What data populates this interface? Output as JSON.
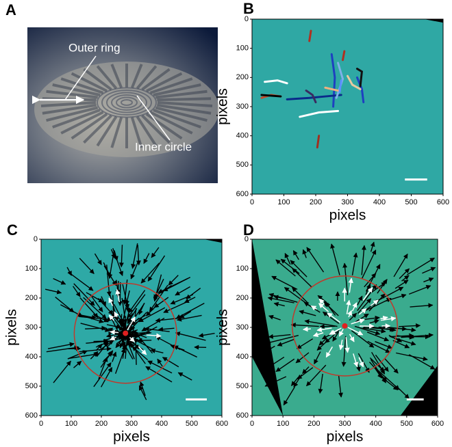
{
  "panels": [
    {
      "label": "A",
      "annotations": [
        "Outer ring",
        "Inner circle"
      ]
    },
    {
      "label": "B",
      "x_label": "pixels",
      "y_label": "pixels",
      "xticks": [
        0,
        100,
        200,
        300,
        400,
        500,
        600
      ],
      "yticks": [
        0,
        100,
        200,
        300,
        400,
        500,
        600
      ]
    },
    {
      "label": "C",
      "x_label": "pixels",
      "y_label": "pixels",
      "xticks": [
        0,
        100,
        200,
        300,
        400,
        500,
        600
      ],
      "yticks": [
        0,
        100,
        200,
        300,
        400,
        500,
        600
      ]
    },
    {
      "label": "D",
      "x_label": "pixels",
      "y_label": "pixels",
      "xticks": [
        0,
        100,
        200,
        300,
        400,
        500,
        600
      ],
      "yticks": [
        0,
        100,
        200,
        300,
        400,
        500,
        600
      ]
    }
  ]
}
